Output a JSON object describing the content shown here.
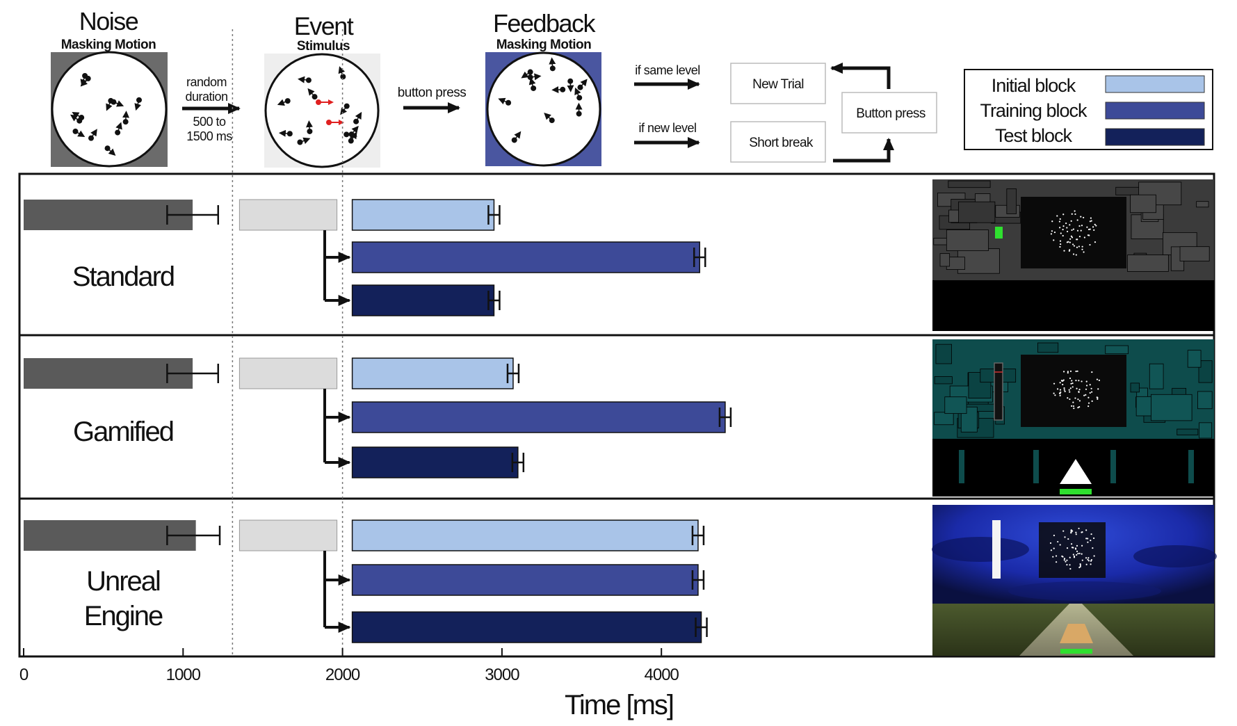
{
  "phases": [
    {
      "title": "Noise",
      "subtitle": "Masking Motion"
    },
    {
      "title": "Event",
      "subtitle": "Stimulus"
    },
    {
      "title": "Feedback",
      "subtitle": "Masking Motion"
    }
  ],
  "transitions": {
    "random_line1": "random",
    "random_line2": "duration",
    "range_line1": "500 to",
    "range_line2": "1500 ms",
    "button_press": "button press",
    "if_same_level": "if same level",
    "if_new_level": "if new level"
  },
  "flow_boxes": {
    "new_trial": "New Trial",
    "short_break": "Short break",
    "button_press": "Button press"
  },
  "legend": [
    {
      "label": "Initial block",
      "color": "#a9c4e8"
    },
    {
      "label": "Training block",
      "color": "#3d4a98"
    },
    {
      "label": "Test block",
      "color": "#13215a"
    }
  ],
  "colors": {
    "noise_bar": "#5a5a5a",
    "event_bar": "#dcdcdc",
    "noise_panel": "#6b6b6b",
    "event_panel": "#eeeeee",
    "feedback_panel": "#4a56a0",
    "arrow_red": "#e02020"
  },
  "conditions": [
    {
      "label_lines": [
        "Standard"
      ],
      "screen_theme": "standard"
    },
    {
      "label_lines": [
        "Gamified"
      ],
      "screen_theme": "gamified"
    },
    {
      "label_lines": [
        "Unreal",
        "Engine"
      ],
      "screen_theme": "unreal"
    }
  ],
  "chart_data": {
    "type": "bar",
    "orientation": "horizontal",
    "xlabel": "Time [ms]",
    "xlim": [
      0,
      5000
    ],
    "xticks": [
      0,
      1000,
      2000,
      3000,
      4000
    ],
    "event_window": [
      1310,
      2000
    ],
    "series": [
      {
        "name": "Initial block",
        "group": "Standard",
        "value": 2950,
        "err": 30
      },
      {
        "name": "Training block",
        "group": "Standard",
        "value": 4240,
        "err": 35
      },
      {
        "name": "Test block",
        "group": "Standard",
        "value": 2950,
        "err": 40
      },
      {
        "name": "Initial block",
        "group": "Gamified",
        "value": 3070,
        "err": 35
      },
      {
        "name": "Training block",
        "group": "Gamified",
        "value": 4400,
        "err": 30
      },
      {
        "name": "Test block",
        "group": "Gamified",
        "value": 3100,
        "err": 35
      },
      {
        "name": "Initial block",
        "group": "Unreal Engine",
        "value": 4230,
        "err": 30
      },
      {
        "name": "Training block",
        "group": "Unreal Engine",
        "value": 4230,
        "err": 30
      },
      {
        "name": "Test block",
        "group": "Unreal Engine",
        "value": 4250,
        "err": 35
      }
    ],
    "noise": [
      {
        "group": "Standard",
        "value": 1060,
        "err_low": 900,
        "err_high": 1220
      },
      {
        "group": "Gamified",
        "value": 1060,
        "err_low": 900,
        "err_high": 1220
      },
      {
        "group": "Unreal Engine",
        "value": 1080,
        "err_low": 900,
        "err_high": 1230
      }
    ]
  }
}
